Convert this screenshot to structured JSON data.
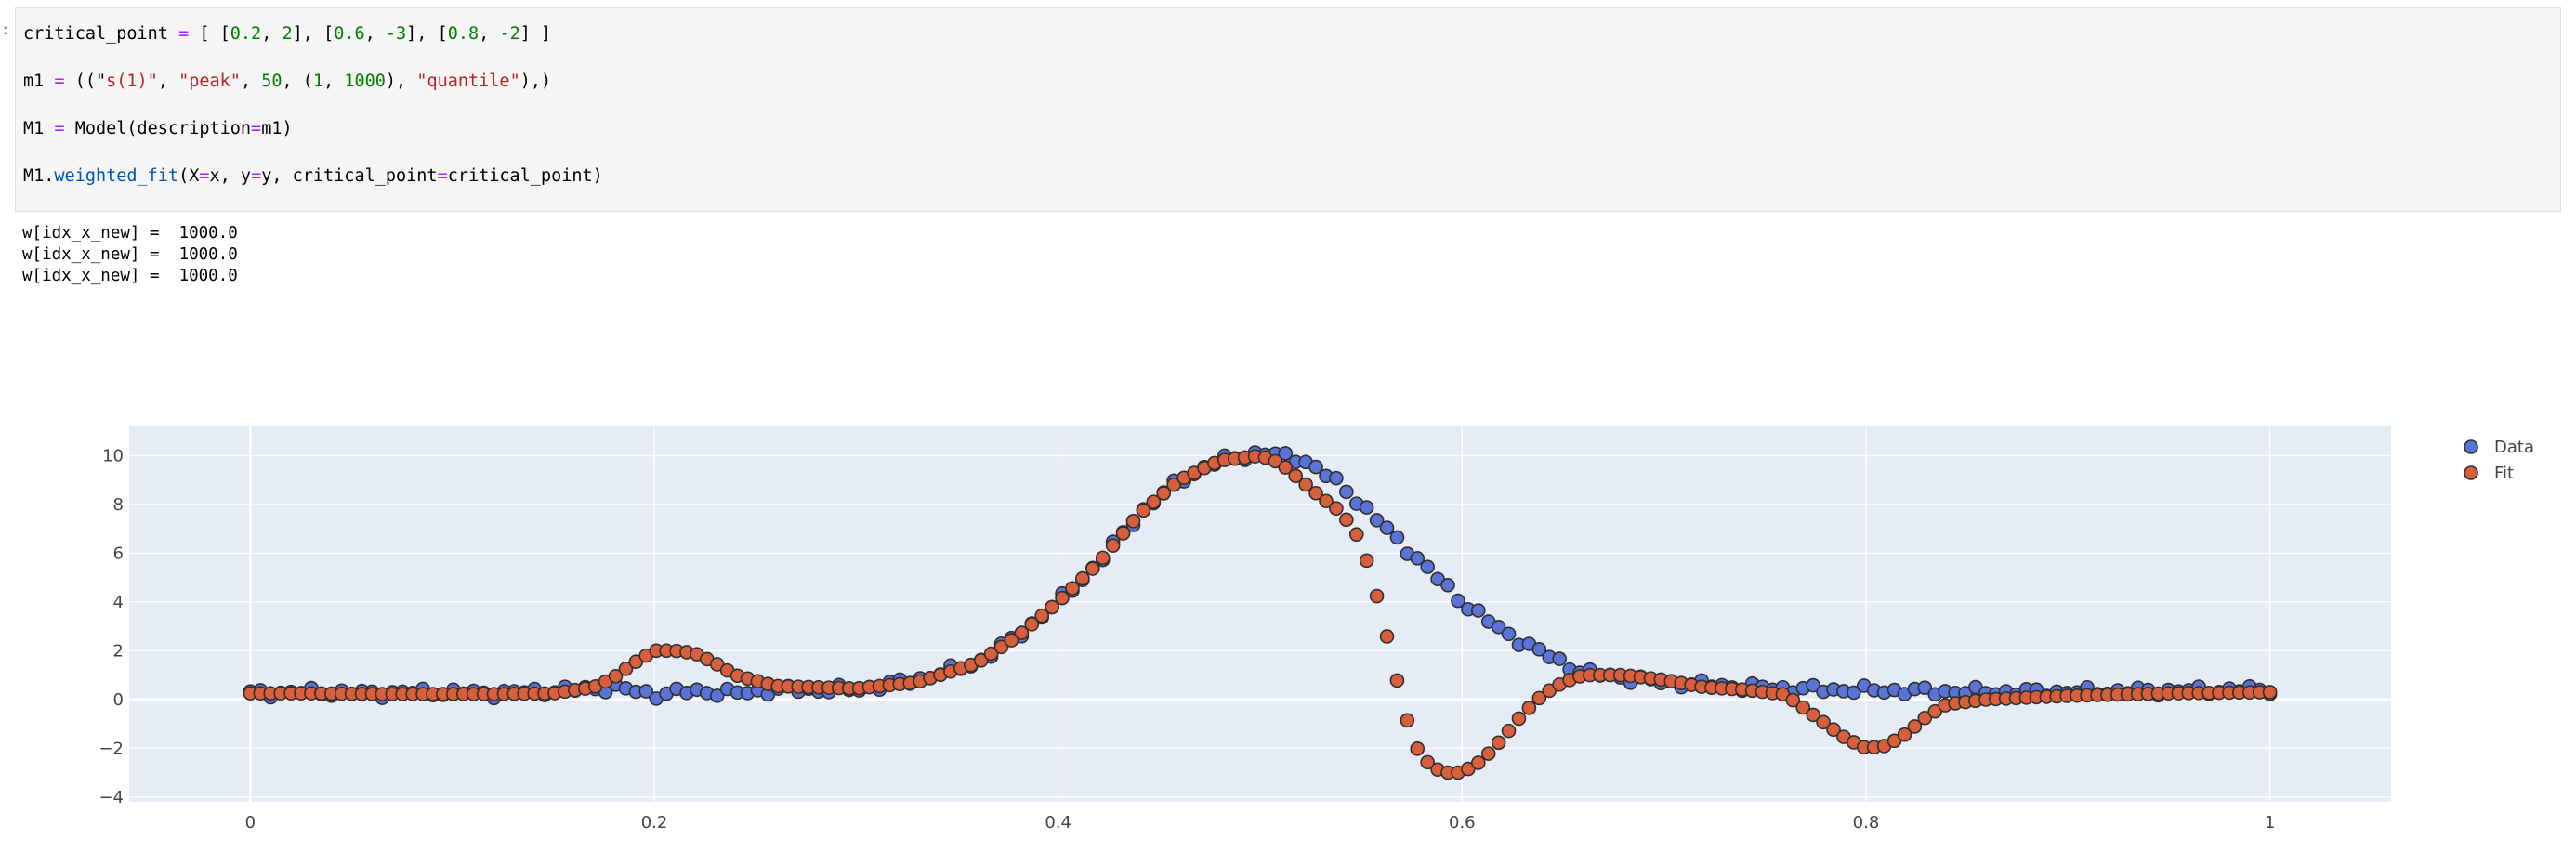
{
  "notebook": {
    "prompt_marker": ":",
    "code_lines": [
      [
        {
          "t": "critical_point "
        },
        {
          "t": "=",
          "c": "tk-op"
        },
        {
          "t": " [ ["
        },
        {
          "t": "0.2",
          "c": "tk-num"
        },
        {
          "t": ", "
        },
        {
          "t": "2",
          "c": "tk-num"
        },
        {
          "t": "], ["
        },
        {
          "t": "0.6",
          "c": "tk-num"
        },
        {
          "t": ", "
        },
        {
          "t": "-3",
          "c": "tk-num"
        },
        {
          "t": "], ["
        },
        {
          "t": "0.8",
          "c": "tk-num"
        },
        {
          "t": ", "
        },
        {
          "t": "-2",
          "c": "tk-num"
        },
        {
          "t": "] ]"
        }
      ],
      [
        {
          "t": "m1 "
        },
        {
          "t": "=",
          "c": "tk-op"
        },
        {
          "t": " ((\""
        },
        {
          "t": "s(1)\"",
          "c": "tk-str"
        },
        {
          "t": ", "
        },
        {
          "t": "\"peak\"",
          "c": "tk-str"
        },
        {
          "t": ", "
        },
        {
          "t": "50",
          "c": "tk-num"
        },
        {
          "t": ", ("
        },
        {
          "t": "1",
          "c": "tk-num"
        },
        {
          "t": ", "
        },
        {
          "t": "1000",
          "c": "tk-num"
        },
        {
          "t": "), "
        },
        {
          "t": "\"quantile\"",
          "c": "tk-str"
        },
        {
          "t": "),)"
        }
      ],
      [
        {
          "t": "M1 "
        },
        {
          "t": "=",
          "c": "tk-op"
        },
        {
          "t": " Model(description"
        },
        {
          "t": "=",
          "c": "tk-op"
        },
        {
          "t": "m1)"
        }
      ],
      [
        {
          "t": "M1."
        },
        {
          "t": "weighted_fit",
          "c": "tk-fn"
        },
        {
          "t": "(X"
        },
        {
          "t": "=",
          "c": "tk-op"
        },
        {
          "t": "x, y"
        },
        {
          "t": "=",
          "c": "tk-op"
        },
        {
          "t": "y, critical_point"
        },
        {
          "t": "=",
          "c": "tk-op"
        },
        {
          "t": "critical_point)"
        }
      ]
    ],
    "output_lines": [
      "w[idx_x_new] =  1000.0",
      "w[idx_x_new] =  1000.0",
      "w[idx_x_new] =  1000.0"
    ]
  },
  "chart_data": {
    "type": "scatter",
    "x_range": [
      -0.06,
      1.06
    ],
    "y_range": [
      -4.2,
      11.2
    ],
    "x_ticks": [
      0,
      0.2,
      0.4,
      0.6,
      0.8,
      1
    ],
    "x_tick_labels": [
      "0",
      "0.2",
      "0.4",
      "0.6",
      "0.8",
      "1"
    ],
    "y_ticks": [
      -4,
      -2,
      0,
      2,
      4,
      6,
      8,
      10
    ],
    "y_tick_labels": [
      "−4",
      "−2",
      "0",
      "2",
      "4",
      "6",
      "8",
      "10"
    ],
    "grid": true,
    "legend_position": "top-right",
    "n_points": 200,
    "series": [
      {
        "name": "Data",
        "color": "#5a73d6",
        "points": [
          [
            0.0,
            0.25
          ],
          [
            0.03,
            0.3
          ],
          [
            0.06,
            0.25
          ],
          [
            0.09,
            0.3
          ],
          [
            0.12,
            0.25
          ],
          [
            0.15,
            0.35
          ],
          [
            0.18,
            0.5
          ],
          [
            0.2,
            0.2
          ],
          [
            0.22,
            0.35
          ],
          [
            0.24,
            0.25
          ],
          [
            0.26,
            0.4
          ],
          [
            0.3,
            0.4
          ],
          [
            0.33,
            0.8
          ],
          [
            0.36,
            1.5
          ],
          [
            0.38,
            2.6
          ],
          [
            0.4,
            4.0
          ],
          [
            0.42,
            5.6
          ],
          [
            0.44,
            7.6
          ],
          [
            0.46,
            9.0
          ],
          [
            0.48,
            9.8
          ],
          [
            0.5,
            10.1
          ],
          [
            0.52,
            9.9
          ],
          [
            0.54,
            8.8
          ],
          [
            0.56,
            7.2
          ],
          [
            0.58,
            5.6
          ],
          [
            0.6,
            4.0
          ],
          [
            0.62,
            2.8
          ],
          [
            0.64,
            1.9
          ],
          [
            0.66,
            1.1
          ],
          [
            0.7,
            0.7
          ],
          [
            0.74,
            0.5
          ],
          [
            0.78,
            0.4
          ],
          [
            0.82,
            0.35
          ],
          [
            0.86,
            0.3
          ],
          [
            0.9,
            0.3
          ],
          [
            0.95,
            0.35
          ],
          [
            1.0,
            0.4
          ]
        ]
      },
      {
        "name": "Fit",
        "color": "#d95f3c",
        "points": [
          [
            0.0,
            0.25
          ],
          [
            0.03,
            0.25
          ],
          [
            0.06,
            0.22
          ],
          [
            0.09,
            0.22
          ],
          [
            0.12,
            0.22
          ],
          [
            0.15,
            0.25
          ],
          [
            0.17,
            0.5
          ],
          [
            0.18,
            0.9
          ],
          [
            0.19,
            1.5
          ],
          [
            0.2,
            2.0
          ],
          [
            0.21,
            2.0
          ],
          [
            0.22,
            1.9
          ],
          [
            0.23,
            1.5
          ],
          [
            0.24,
            1.0
          ],
          [
            0.26,
            0.55
          ],
          [
            0.3,
            0.45
          ],
          [
            0.33,
            0.7
          ],
          [
            0.36,
            1.5
          ],
          [
            0.38,
            2.6
          ],
          [
            0.4,
            4.0
          ],
          [
            0.42,
            5.6
          ],
          [
            0.44,
            7.6
          ],
          [
            0.46,
            9.0
          ],
          [
            0.48,
            9.8
          ],
          [
            0.5,
            10.0
          ],
          [
            0.51,
            9.7
          ],
          [
            0.52,
            9.0
          ],
          [
            0.53,
            8.3
          ],
          [
            0.54,
            7.7
          ],
          [
            0.55,
            6.5
          ],
          [
            0.56,
            3.6
          ],
          [
            0.565,
            1.8
          ],
          [
            0.57,
            0.0
          ],
          [
            0.575,
            -1.5
          ],
          [
            0.58,
            -2.4
          ],
          [
            0.59,
            -3.0
          ],
          [
            0.6,
            -3.0
          ],
          [
            0.61,
            -2.5
          ],
          [
            0.62,
            -1.6
          ],
          [
            0.63,
            -0.6
          ],
          [
            0.64,
            0.2
          ],
          [
            0.65,
            0.7
          ],
          [
            0.66,
            1.0
          ],
          [
            0.68,
            1.0
          ],
          [
            0.7,
            0.8
          ],
          [
            0.72,
            0.5
          ],
          [
            0.74,
            0.4
          ],
          [
            0.76,
            0.2
          ],
          [
            0.77,
            -0.4
          ],
          [
            0.78,
            -1.0
          ],
          [
            0.79,
            -1.6
          ],
          [
            0.8,
            -2.0
          ],
          [
            0.81,
            -1.9
          ],
          [
            0.82,
            -1.4
          ],
          [
            0.83,
            -0.7
          ],
          [
            0.84,
            -0.2
          ],
          [
            0.86,
            0.0
          ],
          [
            0.9,
            0.15
          ],
          [
            0.95,
            0.25
          ],
          [
            1.0,
            0.3
          ]
        ]
      }
    ]
  }
}
